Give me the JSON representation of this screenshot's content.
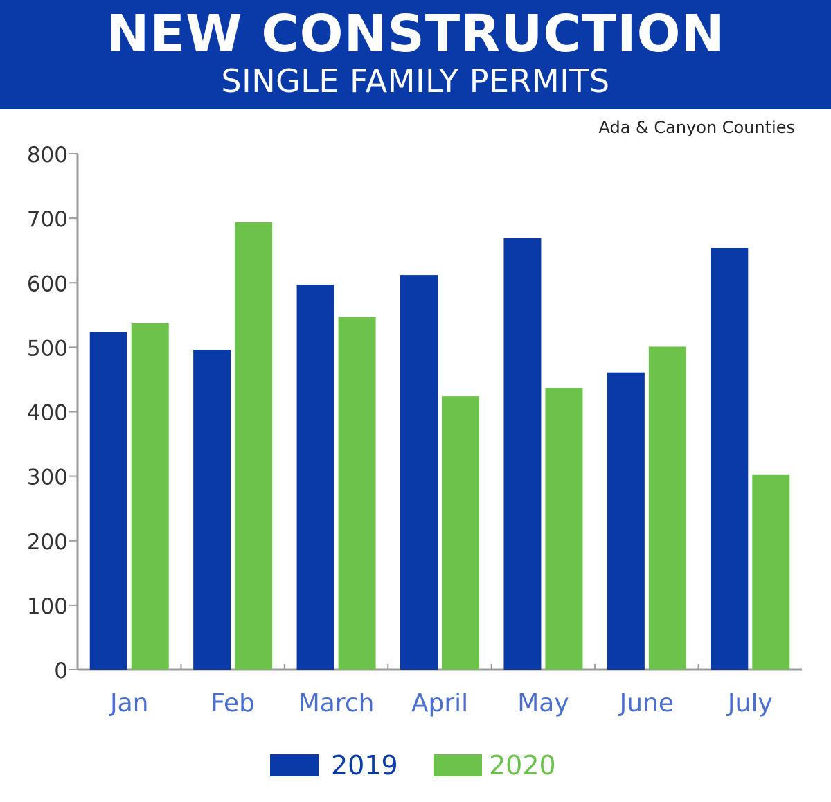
{
  "header": {
    "title": "NEW CONSTRUCTION",
    "subtitle": "SINGLE FAMILY PERMITS"
  },
  "note": "Ada & Canyon Counties",
  "colors": {
    "banner": "#0a3aa8",
    "series_2019": "#0a3aa8",
    "series_2020": "#6cc24a",
    "month_label": "#4a6fd0"
  },
  "chart_data": {
    "type": "bar",
    "title": "NEW CONSTRUCTION",
    "subtitle": "SINGLE FAMILY PERMITS",
    "xlabel": "",
    "ylabel": "",
    "ylim": [
      0,
      800
    ],
    "yticks": [
      "0",
      "100",
      "200",
      "300",
      "400",
      "500",
      "600",
      "700",
      "800"
    ],
    "categories": [
      "Jan",
      "Feb",
      "March",
      "April",
      "May",
      "June",
      "July"
    ],
    "series": [
      {
        "name": "2019",
        "values": [
          523,
          496,
          597,
          612,
          669,
          461,
          654
        ]
      },
      {
        "name": "2020",
        "values": [
          537,
          694,
          547,
          424,
          437,
          501,
          302
        ]
      }
    ],
    "legend": "bottom",
    "grid": false
  }
}
